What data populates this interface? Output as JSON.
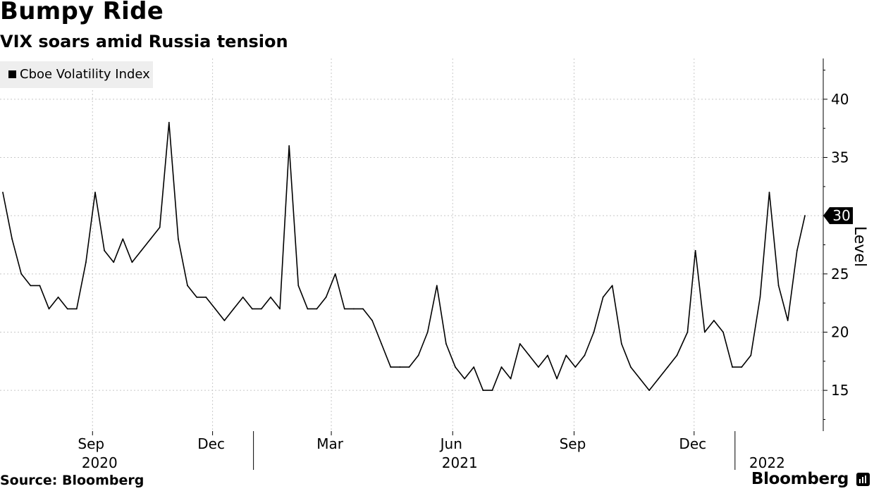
{
  "header": {
    "title": "Bumpy Ride",
    "subtitle": "VIX soars amid Russia tension"
  },
  "legend": {
    "label": "Cboe Volatility Index",
    "color": "#000000"
  },
  "footer": {
    "source": "Source: Bloomberg",
    "brand": "Bloomberg",
    "brand_icon": "bloomberg-logo-icon"
  },
  "colors": {
    "grid": "#c8c8c8",
    "series": "#000000",
    "last_value_marker": "#000000"
  },
  "chart_data": {
    "type": "line",
    "title": "Bumpy Ride",
    "subtitle": "VIX soars amid Russia tension",
    "ylabel": "Level",
    "ylim": [
      11.5,
      43.5
    ],
    "yticks": [
      15,
      20,
      25,
      30,
      35,
      40
    ],
    "y_axis_side": "right",
    "last_value_label": "30",
    "grid": true,
    "legend_position": "top-left",
    "x_range": [
      "2020-06-25",
      "2022-02-23"
    ],
    "x_month_ticks": [
      {
        "date": "2020-09-01",
        "label": "Sep"
      },
      {
        "date": "2020-12-01",
        "label": "Dec"
      },
      {
        "date": "2021-03-01",
        "label": "Mar"
      },
      {
        "date": "2021-06-01",
        "label": "Jun"
      },
      {
        "date": "2021-09-01",
        "label": "Sep"
      },
      {
        "date": "2021-12-01",
        "label": "Dec"
      }
    ],
    "x_year_labels": [
      {
        "date": "2020-09-01",
        "label": "2020"
      },
      {
        "date": "2021-06-01",
        "label": "2021"
      },
      {
        "date": "2022-01-20",
        "label": "2022"
      }
    ],
    "x_year_dividers": [
      "2021-01-01",
      "2022-01-01"
    ],
    "series": [
      {
        "name": "Cboe Volatility Index",
        "x": [
          "2020-06-25",
          "2020-07-02",
          "2020-07-09",
          "2020-07-16",
          "2020-07-23",
          "2020-07-30",
          "2020-08-06",
          "2020-08-13",
          "2020-08-20",
          "2020-08-27",
          "2020-09-03",
          "2020-09-10",
          "2020-09-17",
          "2020-09-24",
          "2020-10-01",
          "2020-10-08",
          "2020-10-15",
          "2020-10-22",
          "2020-10-29",
          "2020-11-05",
          "2020-11-12",
          "2020-11-19",
          "2020-11-26",
          "2020-12-03",
          "2020-12-10",
          "2020-12-17",
          "2020-12-24",
          "2020-12-31",
          "2021-01-07",
          "2021-01-14",
          "2021-01-21",
          "2021-01-28",
          "2021-02-04",
          "2021-02-11",
          "2021-02-18",
          "2021-02-25",
          "2021-03-04",
          "2021-03-11",
          "2021-03-18",
          "2021-03-25",
          "2021-04-01",
          "2021-04-08",
          "2021-04-15",
          "2021-04-22",
          "2021-04-29",
          "2021-05-06",
          "2021-05-13",
          "2021-05-20",
          "2021-05-27",
          "2021-06-03",
          "2021-06-10",
          "2021-06-17",
          "2021-06-24",
          "2021-07-01",
          "2021-07-08",
          "2021-07-15",
          "2021-07-22",
          "2021-07-29",
          "2021-08-05",
          "2021-08-12",
          "2021-08-19",
          "2021-08-26",
          "2021-09-02",
          "2021-09-09",
          "2021-09-16",
          "2021-09-23",
          "2021-09-30",
          "2021-10-07",
          "2021-10-14",
          "2021-10-21",
          "2021-10-28",
          "2021-11-04",
          "2021-11-11",
          "2021-11-18",
          "2021-11-26",
          "2021-12-02",
          "2021-12-09",
          "2021-12-16",
          "2021-12-23",
          "2021-12-30",
          "2022-01-06",
          "2022-01-13",
          "2022-01-20",
          "2022-01-27",
          "2022-02-03",
          "2022-02-10",
          "2022-02-17",
          "2022-02-23"
        ],
        "values": [
          32,
          28,
          25,
          24,
          24,
          22,
          23,
          22,
          22,
          26,
          32,
          27,
          26,
          28,
          26,
          27,
          28,
          29,
          38,
          28,
          24,
          23,
          23,
          22,
          21,
          22,
          23,
          22,
          22,
          23,
          22,
          36,
          24,
          22,
          22,
          23,
          25,
          22,
          22,
          22,
          21,
          19,
          17,
          17,
          17,
          18,
          20,
          24,
          19,
          17,
          16,
          17,
          15,
          15,
          17,
          16,
          19,
          18,
          17,
          18,
          16,
          18,
          17,
          18,
          20,
          23,
          24,
          19,
          17,
          16,
          15,
          16,
          17,
          18,
          20,
          27,
          20,
          21,
          20,
          17,
          17,
          18,
          23,
          32,
          24,
          21,
          27,
          30
        ]
      }
    ]
  }
}
